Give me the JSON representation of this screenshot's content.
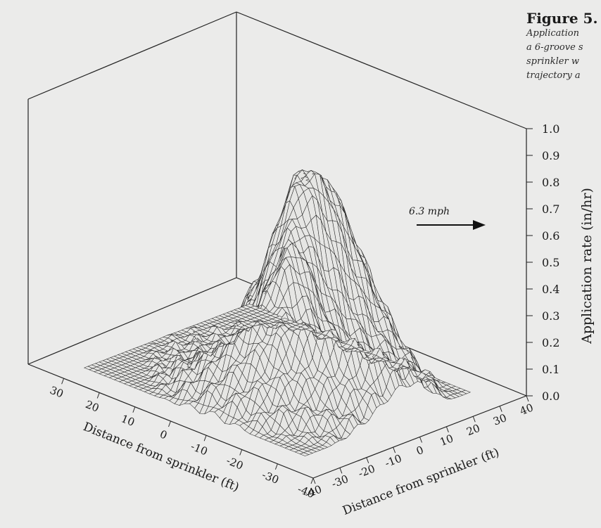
{
  "caption": {
    "title": "Figure 5.",
    "lines": [
      "Application",
      "a 6-groove s",
      "sprinkler w",
      "trajectory a"
    ]
  },
  "chart_data": {
    "type": "surface",
    "wind_label": "6.3 mph",
    "z_axis": {
      "label": "Application rate (in/hr)",
      "range": [
        0.0,
        1.0
      ],
      "ticks": [
        "0.0",
        "0.1",
        "0.2",
        "0.3",
        "0.4",
        "0.5",
        "0.6",
        "0.7",
        "0.8",
        "0.9",
        "1.0"
      ]
    },
    "x_axis": {
      "label": "Distance from sprinkler (ft)",
      "range": [
        -40,
        40
      ],
      "ticks": [
        "-40",
        "-30",
        "-20",
        "-10",
        "0",
        "10",
        "20",
        "30"
      ]
    },
    "y_axis": {
      "label": "Distance from sprinkler (ft)",
      "range": [
        -40,
        40
      ],
      "ticks": [
        "-40",
        "-30",
        "-20",
        "-10",
        "0",
        "10",
        "20",
        "30",
        "40"
      ]
    },
    "peak_application_rate": 0.78,
    "grid": true
  }
}
